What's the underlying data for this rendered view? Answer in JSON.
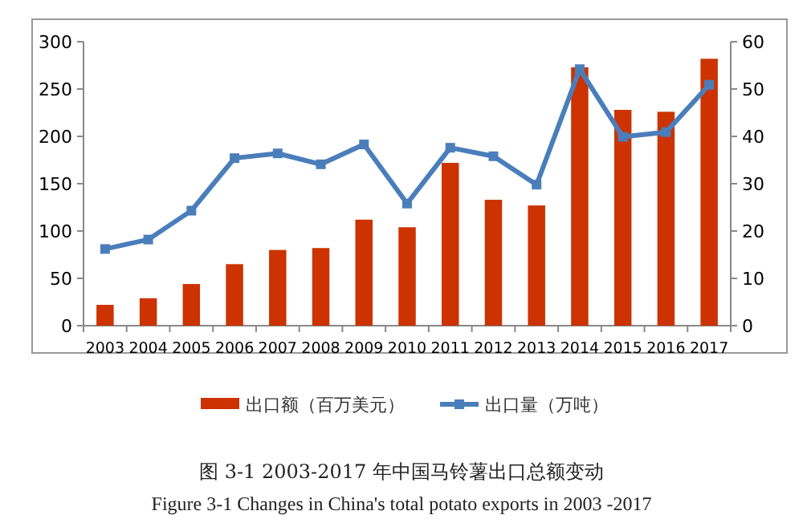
{
  "chart_data": {
    "type": "bar",
    "title": "图 3-1 2003-2017 年中国马铃薯出口总额变动",
    "subtitle": "Figure 3-1 Changes in China's total potato exports in 2003 -2017",
    "categories": [
      "2003",
      "2004",
      "2005",
      "2006",
      "2007",
      "2008",
      "2009",
      "2010",
      "2011",
      "2012",
      "2013",
      "2014",
      "2015",
      "2016",
      "2017"
    ],
    "series": [
      {
        "name": "出口额（百万美元）",
        "color": "#cc3300",
        "values": [
          22,
          29,
          44,
          65,
          80,
          82,
          112,
          104,
          172,
          133,
          127,
          273,
          228,
          226,
          282
        ]
      },
      {
        "name": "出口量（万吨）",
        "type": "line",
        "axis": "y2",
        "color": "#4a7ebb",
        "marker": "square",
        "values": [
          16.2,
          18.2,
          24.3,
          35.4,
          36.4,
          34.1,
          38.3,
          25.8,
          37.6,
          35.8,
          29.8,
          54.2,
          39.9,
          40.9,
          50.9
        ]
      }
    ],
    "ylim": [
      0,
      300
    ],
    "yticks": [
      0,
      50,
      100,
      150,
      200,
      250,
      300
    ],
    "y2lim": [
      0,
      60
    ],
    "y2ticks": [
      0,
      10,
      20,
      30,
      40,
      50,
      60
    ],
    "grid": false,
    "legend": "bottom"
  }
}
